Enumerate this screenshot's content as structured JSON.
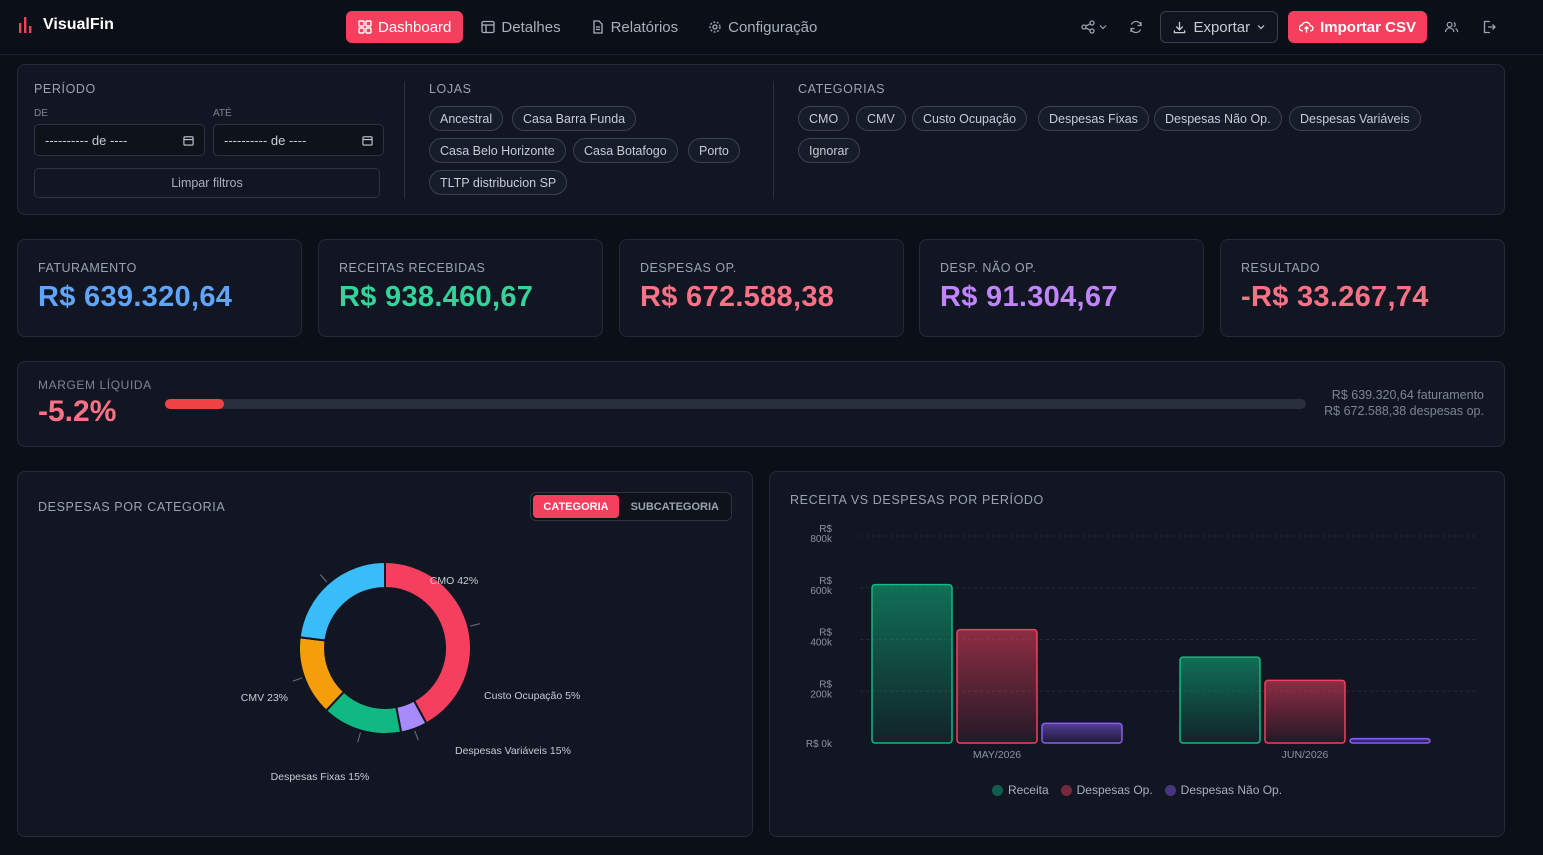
{
  "app": {
    "name": "VisualFin"
  },
  "nav": [
    {
      "label": "Dashboard",
      "icon": "layout-grid-icon",
      "active": true
    },
    {
      "label": "Detalhes",
      "icon": "table-icon",
      "active": false
    },
    {
      "label": "Relatórios",
      "icon": "file-text-icon",
      "active": false
    },
    {
      "label": "Configuração",
      "icon": "gear-icon",
      "active": false
    }
  ],
  "toolbar": {
    "export_label": "Exportar",
    "import_label": "Importar CSV"
  },
  "filters": {
    "period": {
      "title": "PERÍODO",
      "from_label": "DE",
      "to_label": "ATÉ",
      "from_value": "---------- de ----",
      "to_value": "---------- de ----",
      "clear_label": "Limpar filtros"
    },
    "stores": {
      "title": "LOJAS",
      "items": [
        "Ancestral",
        "Casa Barra Funda",
        "Casa Belo Horizonte",
        "Casa Botafogo",
        "Porto",
        "TLTP distribucion SP"
      ]
    },
    "categories": {
      "title": "CATEGORIAS",
      "items": [
        "CMO",
        "CMV",
        "Custo Ocupação",
        "Despesas Fixas",
        "Despesas Não Op.",
        "Despesas Variáveis",
        "Ignorar"
      ]
    }
  },
  "kpis": [
    {
      "label": "FATURAMENTO",
      "value": "R$ 639.320,64",
      "color": "#60a5fa"
    },
    {
      "label": "RECEITAS RECEBIDAS",
      "value": "R$ 938.460,67",
      "color": "#34d399"
    },
    {
      "label": "DESPESAS OP.",
      "value": "R$ 672.588,38",
      "color": "#fb7185"
    },
    {
      "label": "DESP. NÃO OP.",
      "value": "R$ 91.304,67",
      "color": "#c084fc"
    },
    {
      "label": "RESULTADO",
      "value": "-R$ 33.267,74",
      "color": "#fb7185"
    }
  ],
  "margin": {
    "label": "MARGEM LÍQUIDA",
    "value": "-5.2%",
    "bar_fill_fraction": 0.052,
    "revenue_note": "R$ 639.320,64 faturamento",
    "expense_note": "R$ 672.588,38 despesas op."
  },
  "donut_panel": {
    "title": "DESPESAS POR CATEGORIA",
    "toggle": [
      "CATEGORIA",
      "SUBCATEGORIA"
    ]
  },
  "bar_panel": {
    "title": "RECEITA VS DESPESAS POR PERÍODO"
  },
  "chart_data": [
    {
      "type": "pie",
      "categories": [
        "CMO",
        "Custo Ocupação",
        "Despesas Variáveis",
        "Despesas Fixas",
        "CMV"
      ],
      "values": [
        42,
        5,
        15,
        15,
        23
      ],
      "labels": [
        "CMO 42%",
        "Custo Ocupação 5%",
        "Despesas Variáveis 15%",
        "Despesas Fixas 15%",
        "CMV 23%"
      ],
      "colors": [
        "#f43f5e",
        "#a78bfa",
        "#10b981",
        "#f59e0b",
        "#38bdf8"
      ]
    },
    {
      "type": "bar",
      "categories": [
        "MAY/2026",
        "JUN/2026"
      ],
      "series": [
        {
          "name": "Receita",
          "values": [
            612000,
            332000
          ],
          "color": "#10b981"
        },
        {
          "name": "Despesas Op.",
          "values": [
            438000,
            242000
          ],
          "color": "#f43f5e"
        },
        {
          "name": "Despesas Não Op.",
          "values": [
            76000,
            17000
          ],
          "color": "#8b5cf6"
        }
      ],
      "yticks": [
        "R$ 0k",
        "R$ 200k",
        "R$ 400k",
        "R$ 600k",
        "R$ 800k"
      ],
      "ylim": [
        0,
        800000
      ]
    }
  ]
}
